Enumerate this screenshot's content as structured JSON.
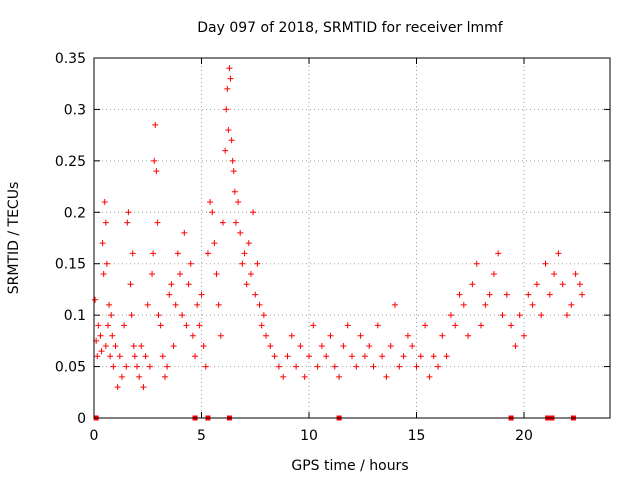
{
  "chart_data": {
    "type": "scatter",
    "title": "Day 097 of 2018, SRMTID for receiver lmmf",
    "xlabel": "GPS time / hours",
    "ylabel": "SRMTID / TECUs",
    "xlim": [
      0,
      24
    ],
    "ylim": [
      0,
      0.35
    ],
    "xticks": [
      0,
      5,
      10,
      15,
      20
    ],
    "xtick_labels": [
      "0",
      "5",
      "10",
      "15",
      "20"
    ],
    "yticks": [
      0,
      0.05,
      0.1,
      0.15,
      0.2,
      0.25,
      0.3,
      0.35
    ],
    "ytick_labels": [
      "0",
      "0.05",
      "0.1",
      "0.15",
      "0.2",
      "0.25",
      "0.3",
      "0.35"
    ],
    "grid": true,
    "marker": "plus",
    "series_color": "#ff0000",
    "series": [
      {
        "name": "SRMTID",
        "x": [
          0.05,
          0.1,
          0.15,
          0.2,
          0.3,
          0.35,
          0.4,
          0.45,
          0.5,
          0.55,
          0.55,
          0.6,
          0.65,
          0.7,
          0.75,
          0.8,
          0.85,
          0.9,
          1.0,
          1.1,
          1.2,
          1.3,
          1.4,
          1.5,
          1.55,
          1.6,
          1.7,
          1.75,
          1.8,
          1.85,
          1.9,
          2.0,
          2.1,
          2.2,
          2.3,
          2.4,
          2.5,
          2.6,
          2.7,
          2.75,
          2.8,
          2.85,
          2.9,
          2.95,
          3.0,
          3.1,
          3.2,
          3.3,
          3.4,
          3.5,
          3.6,
          3.7,
          3.8,
          3.9,
          4.0,
          4.1,
          4.2,
          4.3,
          4.4,
          4.5,
          4.6,
          4.7,
          4.8,
          4.9,
          5.0,
          5.1,
          5.2,
          5.3,
          5.4,
          5.5,
          5.6,
          5.7,
          5.8,
          5.9,
          6.0,
          6.1,
          6.15,
          6.2,
          6.25,
          6.3,
          6.35,
          6.4,
          6.45,
          6.5,
          6.55,
          6.6,
          6.7,
          6.8,
          6.9,
          7.0,
          7.1,
          7.2,
          7.3,
          7.4,
          7.5,
          7.6,
          7.7,
          7.8,
          7.9,
          8.0,
          8.2,
          8.4,
          8.6,
          8.8,
          9.0,
          9.2,
          9.4,
          9.6,
          9.8,
          10.0,
          10.2,
          10.4,
          10.6,
          10.8,
          11.0,
          11.2,
          11.4,
          11.6,
          11.8,
          12.0,
          12.2,
          12.4,
          12.6,
          12.8,
          13.0,
          13.2,
          13.4,
          13.6,
          13.8,
          14.0,
          14.2,
          14.4,
          14.6,
          14.8,
          15.0,
          15.2,
          15.4,
          15.6,
          15.8,
          16.0,
          16.2,
          16.4,
          16.6,
          16.8,
          17.0,
          17.2,
          17.4,
          17.6,
          17.8,
          18.0,
          18.2,
          18.4,
          18.6,
          18.8,
          19.0,
          19.2,
          19.4,
          19.6,
          19.8,
          20.0,
          20.2,
          20.4,
          20.6,
          20.8,
          21.0,
          21.2,
          21.4,
          21.6,
          21.8,
          22.0,
          22.2,
          22.4,
          22.6,
          22.7
        ],
        "y": [
          0.115,
          0.075,
          0.06,
          0.09,
          0.08,
          0.065,
          0.17,
          0.14,
          0.21,
          0.19,
          0.07,
          0.15,
          0.09,
          0.11,
          0.06,
          0.1,
          0.08,
          0.05,
          0.07,
          0.03,
          0.06,
          0.04,
          0.09,
          0.05,
          0.19,
          0.2,
          0.13,
          0.1,
          0.16,
          0.07,
          0.06,
          0.05,
          0.04,
          0.07,
          0.03,
          0.06,
          0.11,
          0.05,
          0.14,
          0.16,
          0.25,
          0.285,
          0.24,
          0.19,
          0.1,
          0.09,
          0.06,
          0.04,
          0.05,
          0.12,
          0.13,
          0.07,
          0.11,
          0.16,
          0.14,
          0.1,
          0.18,
          0.09,
          0.13,
          0.15,
          0.08,
          0.06,
          0.11,
          0.09,
          0.12,
          0.07,
          0.05,
          0.16,
          0.21,
          0.2,
          0.17,
          0.14,
          0.11,
          0.08,
          0.19,
          0.26,
          0.3,
          0.32,
          0.28,
          0.34,
          0.33,
          0.27,
          0.25,
          0.24,
          0.22,
          0.19,
          0.21,
          0.18,
          0.15,
          0.16,
          0.13,
          0.17,
          0.14,
          0.2,
          0.12,
          0.15,
          0.11,
          0.09,
          0.1,
          0.08,
          0.07,
          0.06,
          0.05,
          0.04,
          0.06,
          0.08,
          0.05,
          0.07,
          0.04,
          0.06,
          0.09,
          0.05,
          0.07,
          0.06,
          0.08,
          0.05,
          0.04,
          0.07,
          0.09,
          0.06,
          0.05,
          0.08,
          0.06,
          0.07,
          0.05,
          0.09,
          0.06,
          0.04,
          0.07,
          0.11,
          0.05,
          0.06,
          0.08,
          0.07,
          0.05,
          0.06,
          0.09,
          0.04,
          0.06,
          0.05,
          0.08,
          0.06,
          0.1,
          0.09,
          0.12,
          0.11,
          0.08,
          0.13,
          0.15,
          0.09,
          0.11,
          0.12,
          0.14,
          0.16,
          0.1,
          0.12,
          0.09,
          0.07,
          0.1,
          0.08,
          0.12,
          0.11,
          0.13,
          0.1,
          0.15,
          0.12,
          0.14,
          0.16,
          0.13,
          0.1,
          0.11,
          0.14,
          0.13,
          0.12
        ]
      }
    ],
    "zero_markers_x": [
      0.1,
      4.7,
      5.3,
      6.3,
      11.4,
      19.4,
      21.1,
      21.3,
      22.3
    ]
  }
}
